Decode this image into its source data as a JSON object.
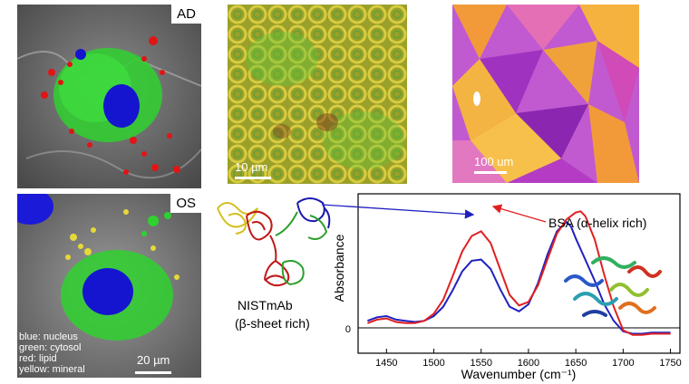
{
  "panels": {
    "ad": {
      "tag": "AD"
    },
    "os": {
      "tag": "OS",
      "scale_label": "20 µm",
      "legend": [
        "blue: nucleus",
        "green: cytosol",
        "red: lipid",
        "yellow: mineral"
      ]
    },
    "optical": {
      "scale_label": "10 µm"
    },
    "afm": {
      "scale_label": "100 um"
    }
  },
  "molecules": {
    "antibody_name": "NISTmAb",
    "antibody_note": "(β-sheet rich)",
    "bsa_label": "BSA (α-helix rich)"
  },
  "colors": {
    "nistmab_line": "#2020c0",
    "bsa_line": "#e02020"
  },
  "chart_data": {
    "type": "line",
    "xlabel": "Wavenumber (cm⁻¹)",
    "ylabel": "Absorbance",
    "xlim": [
      1420,
      1760
    ],
    "ylim": [
      -0.1,
      1.0
    ],
    "x_ticks": [
      1450,
      1500,
      1550,
      1600,
      1650,
      1700,
      1750
    ],
    "y_ticks": [
      0
    ],
    "series": [
      {
        "color": "#2020c0",
        "x": [
          1430,
          1440,
          1450,
          1460,
          1470,
          1480,
          1490,
          1500,
          1510,
          1520,
          1530,
          1540,
          1550,
          1560,
          1570,
          1580,
          1590,
          1600,
          1610,
          1620,
          1630,
          1640,
          1645,
          1650,
          1660,
          1670,
          1680,
          1690,
          1700,
          1710,
          1720,
          1730,
          1740,
          1750
        ],
        "y": [
          0.06,
          0.09,
          0.1,
          0.07,
          0.06,
          0.05,
          0.06,
          0.1,
          0.18,
          0.32,
          0.48,
          0.57,
          0.58,
          0.5,
          0.33,
          0.18,
          0.14,
          0.2,
          0.38,
          0.62,
          0.82,
          0.9,
          0.86,
          0.76,
          0.58,
          0.4,
          0.2,
          0.06,
          -0.03,
          -0.05,
          -0.05,
          -0.04,
          -0.04,
          -0.04
        ]
      },
      {
        "color": "#e02020",
        "x": [
          1430,
          1440,
          1450,
          1460,
          1470,
          1480,
          1490,
          1500,
          1510,
          1520,
          1530,
          1540,
          1550,
          1560,
          1570,
          1580,
          1590,
          1600,
          1610,
          1620,
          1630,
          1640,
          1650,
          1655,
          1660,
          1670,
          1680,
          1690,
          1700,
          1710,
          1720,
          1730,
          1740,
          1750
        ],
        "y": [
          0.04,
          0.07,
          0.08,
          0.05,
          0.04,
          0.04,
          0.06,
          0.12,
          0.24,
          0.44,
          0.65,
          0.78,
          0.82,
          0.72,
          0.5,
          0.28,
          0.19,
          0.22,
          0.36,
          0.58,
          0.8,
          0.92,
          0.98,
          0.99,
          0.95,
          0.75,
          0.45,
          0.18,
          -0.02,
          -0.06,
          -0.06,
          -0.05,
          -0.05,
          -0.05
        ]
      }
    ]
  }
}
